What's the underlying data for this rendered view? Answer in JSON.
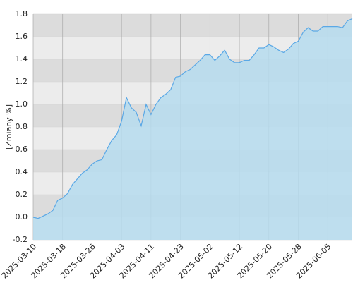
{
  "chart_data": {
    "type": "area",
    "y_label": "[Zmiany %]",
    "categories": [
      "2025-03-10",
      null,
      null,
      null,
      null,
      null,
      "2025-03-18",
      null,
      null,
      null,
      null,
      null,
      "2025-03-26",
      null,
      null,
      null,
      null,
      null,
      "2025-04-03",
      null,
      null,
      null,
      null,
      null,
      "2025-04-11",
      null,
      null,
      null,
      null,
      null,
      "2025-04-23",
      null,
      null,
      null,
      null,
      null,
      "2025-05-02",
      null,
      null,
      null,
      null,
      null,
      "2025-05-12",
      null,
      null,
      null,
      null,
      null,
      "2025-05-20",
      null,
      null,
      null,
      null,
      null,
      "2025-05-28",
      null,
      null,
      null,
      null,
      null,
      "2025-06-05",
      null,
      null,
      null,
      null,
      null
    ],
    "values": [
      0.0,
      -0.01,
      0.01,
      0.03,
      0.06,
      0.15,
      0.17,
      0.21,
      0.29,
      0.34,
      0.39,
      0.42,
      0.47,
      0.5,
      0.51,
      0.6,
      0.68,
      0.73,
      0.85,
      1.06,
      0.97,
      0.93,
      0.81,
      1.0,
      0.91,
      1.0,
      1.06,
      1.09,
      1.13,
      1.24,
      1.25,
      1.29,
      1.31,
      1.35,
      1.39,
      1.44,
      1.44,
      1.39,
      1.43,
      1.48,
      1.4,
      1.37,
      1.37,
      1.39,
      1.39,
      1.44,
      1.5,
      1.5,
      1.53,
      1.51,
      1.48,
      1.46,
      1.49,
      1.54,
      1.56,
      1.64,
      1.68,
      1.65,
      1.65,
      1.69,
      1.69,
      1.69,
      1.69,
      1.68,
      1.74,
      1.76
    ],
    "color": "#5aa8e6",
    "fill": "#b6dcee",
    "ylim": [
      -0.2,
      1.8
    ],
    "yticks": [
      -0.2,
      {
        "value": 0,
        "label": "0.0"
      },
      0.2,
      0.4,
      0.6,
      0.8,
      {
        "value": 1,
        "label": "1.0"
      },
      1.2,
      1.4,
      1.6,
      1.8
    ],
    "grid": true
  }
}
